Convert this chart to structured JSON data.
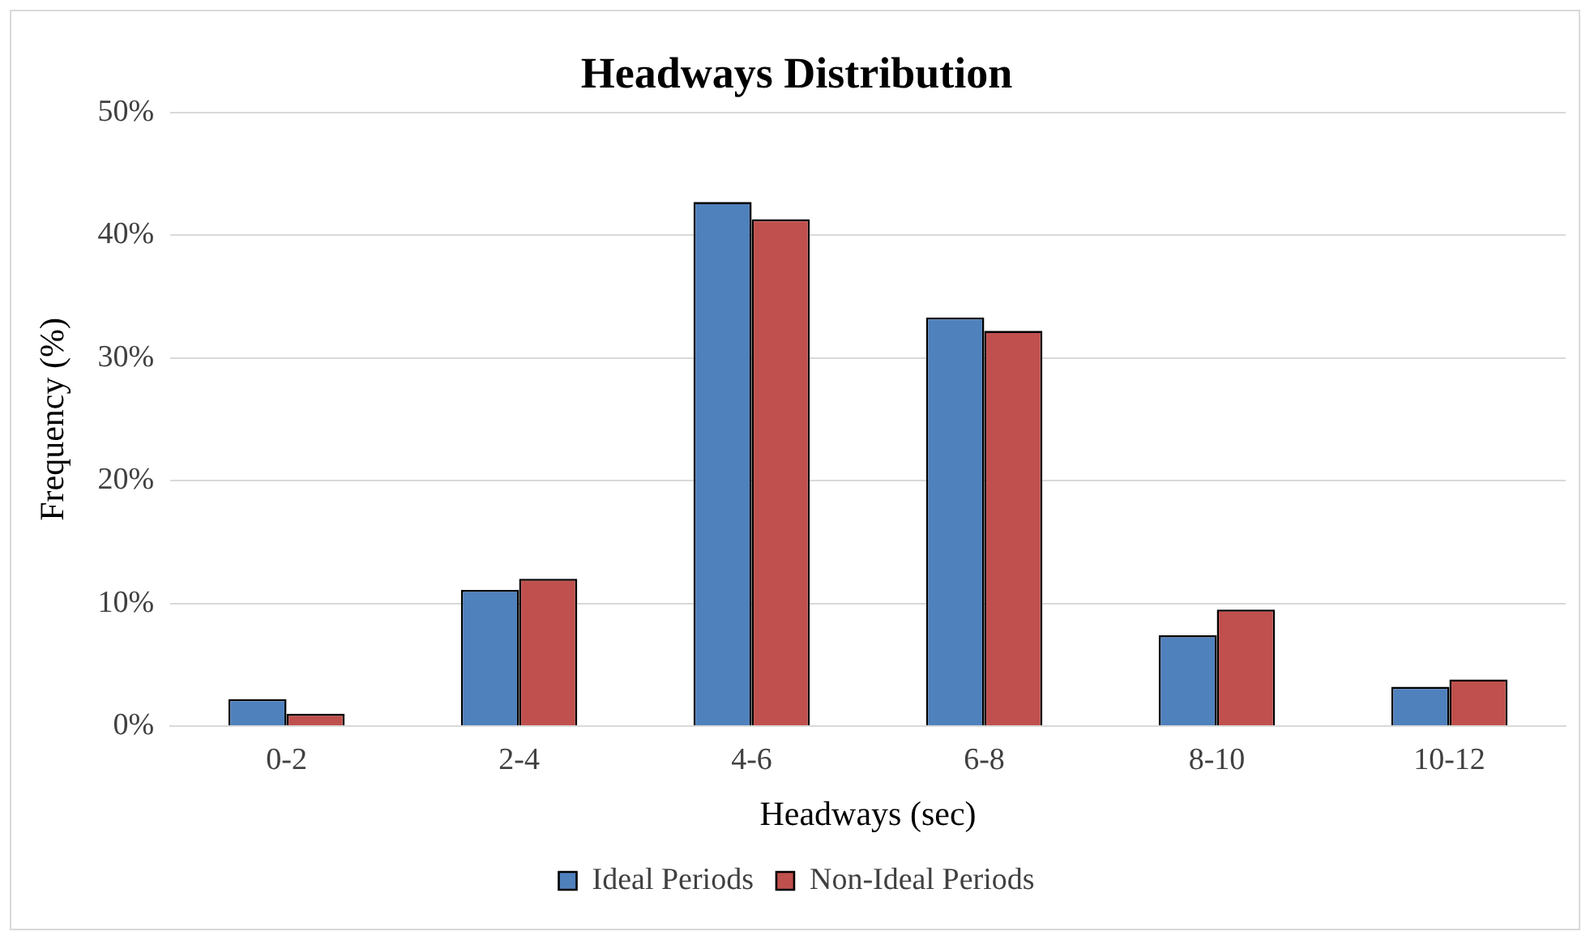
{
  "chart_data": {
    "type": "bar",
    "title": "Headways Distribution",
    "xlabel": "Headways (sec)",
    "ylabel": "Frequency (%)",
    "categories": [
      "0-2",
      "2-4",
      "4-6",
      "6-8",
      "8-10",
      "10-12"
    ],
    "series": [
      {
        "name": "Ideal Periods",
        "color": "#4f81bd",
        "values": [
          2.2,
          11.1,
          42.7,
          33.3,
          7.4,
          3.2
        ]
      },
      {
        "name": "Non-Ideal Periods",
        "color": "#c0504d",
        "values": [
          1.0,
          12.0,
          41.3,
          32.2,
          9.5,
          3.8
        ]
      }
    ],
    "ylim": [
      0,
      50
    ],
    "yticks": [
      {
        "value": 0,
        "label": "0%"
      },
      {
        "value": 10,
        "label": "10%"
      },
      {
        "value": 20,
        "label": "20%"
      },
      {
        "value": 30,
        "label": "30%"
      },
      {
        "value": 40,
        "label": "40%"
      },
      {
        "value": 50,
        "label": "50%"
      }
    ],
    "grid": "y",
    "legend": "bottom"
  }
}
